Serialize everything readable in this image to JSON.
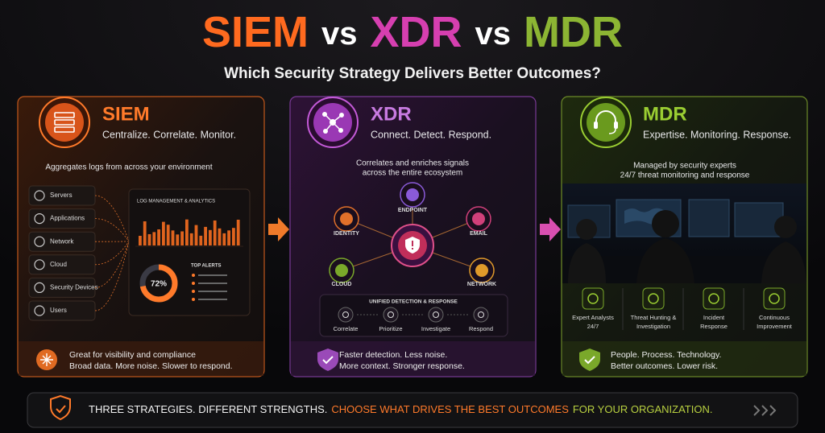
{
  "title": {
    "parts": [
      "SIEM",
      "vs",
      "XDR",
      "vs",
      "MDR"
    ]
  },
  "subtitle": "Which Security Strategy Delivers Better Outcomes?",
  "siem": {
    "name": "SIEM",
    "tagline": "Centralize. Correlate. Monitor.",
    "description": "Aggregates logs from across your environment",
    "sources": [
      "Servers",
      "Applications",
      "Network",
      "Cloud",
      "Security Devices",
      "Users"
    ],
    "panel_title": "LOG MANAGEMENT & ANALYTICS",
    "gauge": {
      "value": 72,
      "label": "72%"
    },
    "alerts_title": "TOP ALERTS",
    "footer": [
      "Great for visibility and compliance",
      "Broad data. More noise. Slower to respond."
    ]
  },
  "xdr": {
    "name": "XDR",
    "tagline": "Connect. Detect. Respond.",
    "description": [
      "Correlates and enriches signals",
      "across the entire ecosystem"
    ],
    "nodes": [
      "ENDPOINT",
      "IDENTITY",
      "EMAIL",
      "CLOUD",
      "NETWORK"
    ],
    "pipeline_title": "UNIFIED DETECTION & RESPONSE",
    "steps": [
      "Correlate",
      "Prioritize",
      "Investigate",
      "Respond"
    ],
    "footer": [
      "Faster detection. Less noise.",
      "More context. Stronger response."
    ]
  },
  "mdr": {
    "name": "MDR",
    "tagline": "Expertise. Monitoring. Response.",
    "description": [
      "Managed by security experts",
      "24/7 threat monitoring and response"
    ],
    "features": [
      [
        "Expert Analysts",
        "24/7"
      ],
      [
        "Threat Hunting &",
        "Investigation"
      ],
      [
        "Incident",
        "Response"
      ],
      [
        "Continuous",
        "Improvement"
      ]
    ],
    "footer": [
      "People. Process. Technology.",
      "Better outcomes. Lower risk."
    ]
  },
  "banner": [
    "THREE STRATEGIES. DIFFERENT STRENGTHS.",
    "CHOOSE WHAT DRIVES THE BEST OUTCOMES",
    "FOR YOUR ORGANIZATION."
  ]
}
